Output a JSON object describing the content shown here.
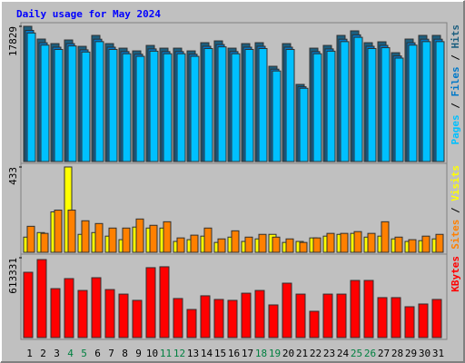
{
  "title": "Daily usage for May 2024",
  "legend_separator": " / ",
  "weekend_days": [
    "4",
    "5",
    "11",
    "12",
    "18",
    "19",
    "25",
    "26"
  ],
  "weekend_color": "#008040",
  "chart_data": [
    {
      "type": "bar",
      "ylim": [
        0,
        17829
      ],
      "yticks": [
        17829
      ],
      "series": [
        {
          "name": "Hits",
          "color": "#1d5f7f",
          "values": [
            17829,
            16150,
            15550,
            16030,
            15190,
            16630,
            15550,
            14950,
            14590,
            15310,
            14950,
            14950,
            14590,
            15670,
            15910,
            14950,
            15550,
            15670,
            12560,
            15550,
            10170,
            14950,
            15310,
            16630,
            17230,
            15670,
            15790,
            14350,
            16150,
            16630,
            16630
          ]
        },
        {
          "name": "Files",
          "color": "#0078c8",
          "values": [
            17290,
            15660,
            15080,
            15550,
            14730,
            16130,
            15080,
            14500,
            14150,
            14850,
            14500,
            14500,
            14150,
            15200,
            15430,
            14500,
            15080,
            15200,
            12180,
            15080,
            9860,
            14500,
            14850,
            16130,
            16710,
            15200,
            15320,
            13920,
            15660,
            16130,
            16130
          ]
        },
        {
          "name": "Pages",
          "color": "#00c0ff",
          "values": [
            16950,
            15350,
            14780,
            15240,
            14440,
            15810,
            14780,
            14210,
            13870,
            14550,
            14210,
            14210,
            13870,
            14900,
            15120,
            14210,
            14780,
            14900,
            11940,
            14780,
            9660,
            14210,
            14550,
            15810,
            16380,
            14900,
            15010,
            13640,
            15350,
            15810,
            15810
          ]
        }
      ]
    },
    {
      "type": "bar",
      "ylim": [
        0,
        433
      ],
      "yticks": [
        433
      ],
      "series": [
        {
          "name": "Visits",
          "color": "#ffff00",
          "values": [
            77,
            100,
            205,
            433,
            91,
            100,
            82,
            64,
            128,
            123,
            123,
            55,
            64,
            82,
            50,
            77,
            55,
            68,
            91,
            50,
            55,
            73,
            82,
            91,
            96,
            77,
            82,
            68,
            55,
            59,
            68
          ]
        },
        {
          "name": "Sites",
          "color": "#ff8000",
          "values": [
            132,
            96,
            214,
            214,
            160,
            146,
            123,
            123,
            169,
            137,
            155,
            73,
            87,
            123,
            68,
            109,
            77,
            91,
            77,
            68,
            50,
            73,
            96,
            96,
            105,
            96,
            155,
            77,
            64,
            82,
            91
          ]
        }
      ]
    },
    {
      "type": "bar",
      "ylim": [
        0,
        613331
      ],
      "yticks": [
        613331
      ],
      "categories": [
        "1",
        "2",
        "3",
        "4",
        "5",
        "6",
        "7",
        "8",
        "9",
        "10",
        "11",
        "12",
        "13",
        "14",
        "15",
        "16",
        "17",
        "18",
        "19",
        "20",
        "21",
        "22",
        "23",
        "24",
        "25",
        "26",
        "27",
        "28",
        "29",
        "30",
        "31"
      ],
      "series": [
        {
          "name": "KBytes",
          "color": "#ff0000",
          "values": [
            501820,
            599390,
            376000,
            453000,
            362000,
            460000,
            369000,
            334000,
            286000,
            537000,
            544000,
            300000,
            216000,
            321000,
            293000,
            286000,
            341000,
            362000,
            251000,
            418000,
            334000,
            202000,
            334000,
            334000,
            439000,
            439000,
            307000,
            307000,
            237000,
            258000,
            293000
          ]
        }
      ]
    }
  ]
}
